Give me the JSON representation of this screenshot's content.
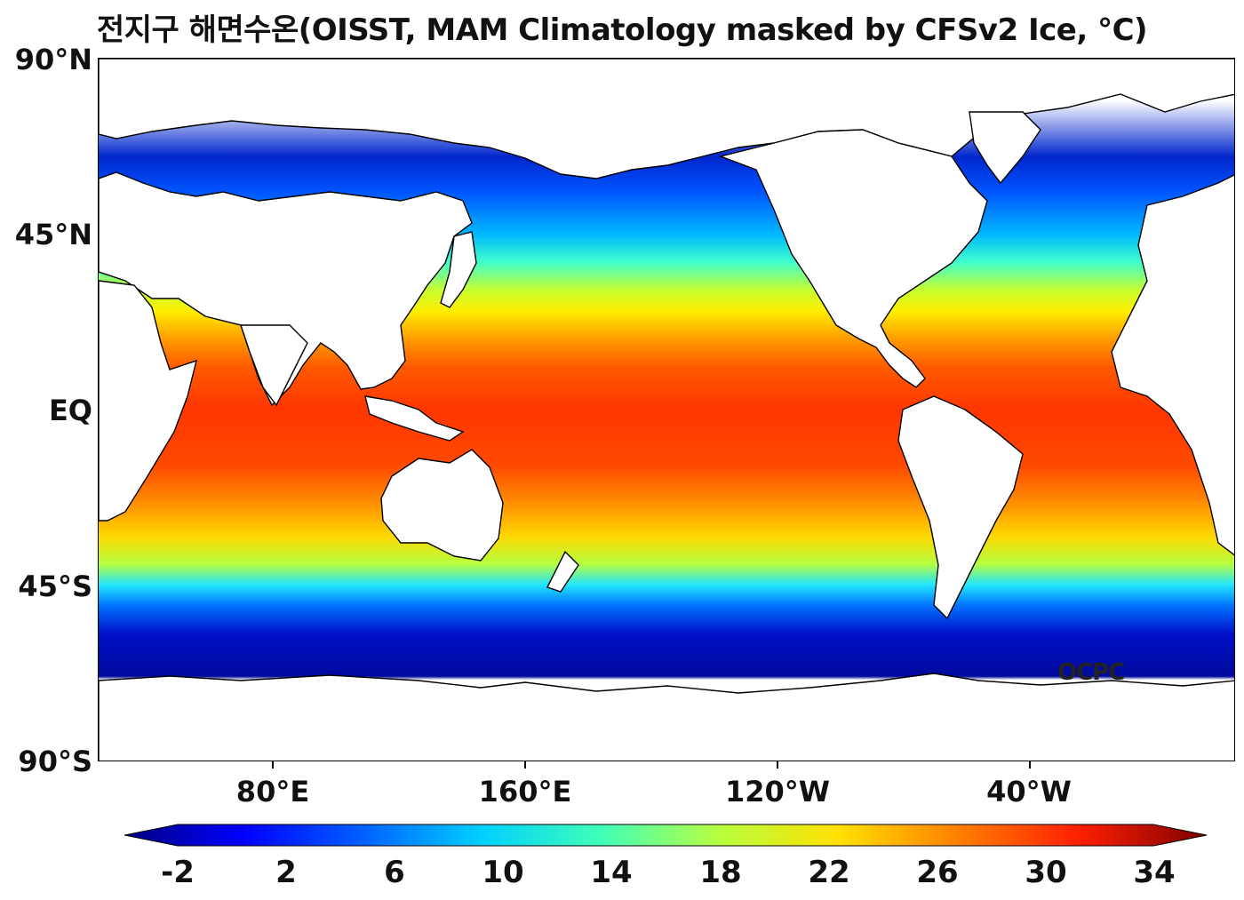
{
  "title": "전지구 해면수온(OISST, MAM Climatology masked by CFSv2 Ice, °C)",
  "lat_labels": [
    "90°N",
    "45°N",
    "EQ",
    "45°S",
    "90°S"
  ],
  "lon_labels": [
    "80°E",
    "160°E",
    "120°W",
    "40°W"
  ],
  "logo_text": "OCPC",
  "colorbar": {
    "ticks": [
      "-2",
      "2",
      "6",
      "10",
      "14",
      "18",
      "22",
      "26",
      "30",
      "34"
    ],
    "colors": [
      "#00007f",
      "#0000ff",
      "#0060ff",
      "#00d0ff",
      "#40ffb8",
      "#b8ff40",
      "#ffe000",
      "#ff8000",
      "#ff2000",
      "#7f0000"
    ]
  }
}
